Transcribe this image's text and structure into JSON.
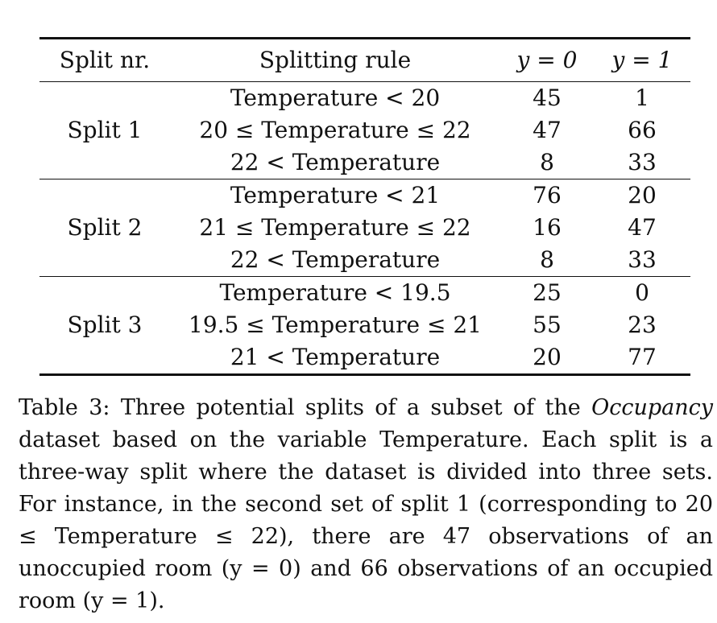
{
  "table": {
    "headers": {
      "split": "Split nr.",
      "rule": "Splitting rule",
      "y0": "y = 0",
      "y1": "y = 1"
    },
    "groups": [
      {
        "label": "Split 1",
        "rows": [
          {
            "rule": "Temperature < 20",
            "y0": "45",
            "y1": "1"
          },
          {
            "rule": "20 ≤ Temperature ≤ 22",
            "y0": "47",
            "y1": "66"
          },
          {
            "rule": "22 < Temperature",
            "y0": "8",
            "y1": "33"
          }
        ]
      },
      {
        "label": "Split 2",
        "rows": [
          {
            "rule": "Temperature < 21",
            "y0": "76",
            "y1": "20"
          },
          {
            "rule": "21 ≤ Temperature ≤ 22",
            "y0": "16",
            "y1": "47"
          },
          {
            "rule": "22 < Temperature",
            "y0": "8",
            "y1": "33"
          }
        ]
      },
      {
        "label": "Split 3",
        "rows": [
          {
            "rule": "Temperature < 19.5",
            "y0": "25",
            "y1": "0"
          },
          {
            "rule": "19.5 ≤ Temperature ≤ 21",
            "y0": "55",
            "y1": "23"
          },
          {
            "rule": "21 < Temperature",
            "y0": "20",
            "y1": "77"
          }
        ]
      }
    ]
  },
  "caption": {
    "prefix": "Table 3: Three potential splits of a subset of the ",
    "emphasis": "Occupancy",
    "rest": " dataset based on the variable Temperature. Each split is a three-way split where the dataset is divided into three sets. For instance, in the second set of split 1 (corresponding to 20 ≤ Temperature ≤ 22), there are 47 observations of an unoccupied room (y = 0) and 66 observations of an occupied room (y = 1)."
  }
}
